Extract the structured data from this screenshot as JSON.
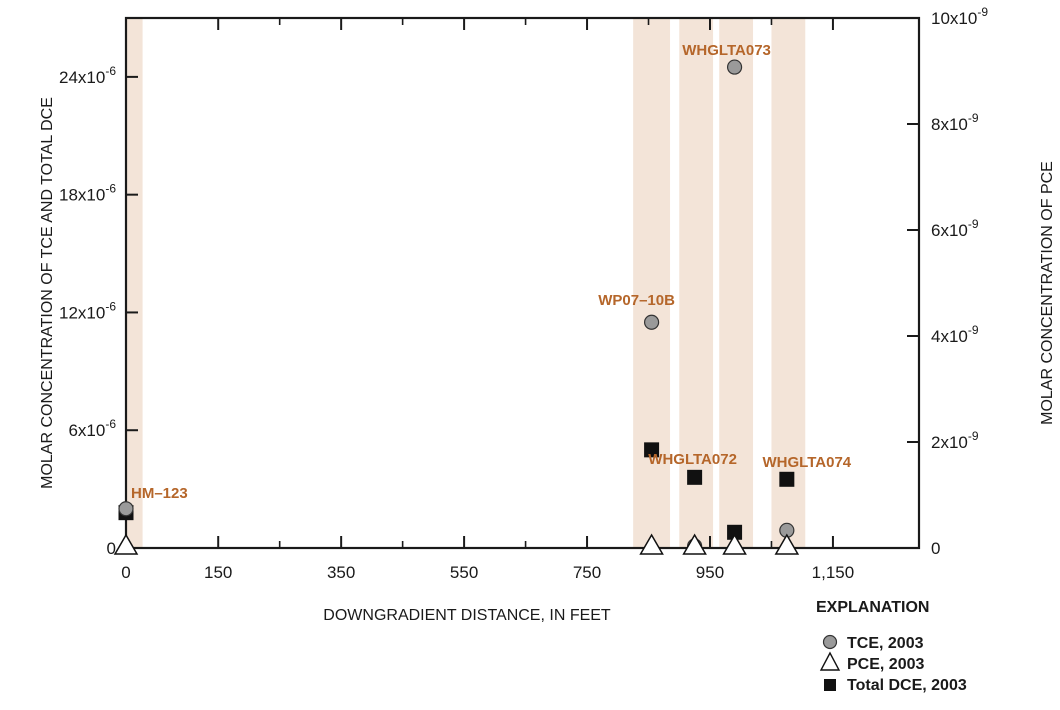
{
  "chart_data": {
    "type": "scatter",
    "xlabel": "DOWNGRADIENT DISTANCE, IN FEET",
    "ylabel": "MOLAR CONCENTRATION OF TCE AND TOTAL DCE",
    "y2label": "MOLAR CONCENTRATION OF PCE",
    "xlim": [
      0,
      1290
    ],
    "ylim": [
      0,
      2.7e-05
    ],
    "y2lim": [
      0,
      1e-08
    ],
    "x_tick_values": [
      0,
      150,
      350,
      550,
      750,
      950,
      1150
    ],
    "x_tick_labels": [
      "0",
      "150",
      "350",
      "550",
      "750",
      "950",
      "1,150"
    ],
    "x_minor_ticks": [
      250,
      450,
      650,
      850,
      1050
    ],
    "y_ticks": [
      {
        "value": 0,
        "base": "0",
        "exp": ""
      },
      {
        "value": 6e-06,
        "base": "6x10",
        "exp": "-6"
      },
      {
        "value": 1.2e-05,
        "base": "12x10",
        "exp": "-6"
      },
      {
        "value": 1.8e-05,
        "base": "18x10",
        "exp": "-6"
      },
      {
        "value": 2.4e-05,
        "base": "24x10",
        "exp": "-6"
      }
    ],
    "y2_ticks": [
      {
        "value": 0,
        "base": "0",
        "exp": ""
      },
      {
        "value": 2e-09,
        "base": "2x10",
        "exp": "-9"
      },
      {
        "value": 4e-09,
        "base": "4x10",
        "exp": "-9"
      },
      {
        "value": 6e-09,
        "base": "6x10",
        "exp": "-9"
      },
      {
        "value": 8e-09,
        "base": "8x10",
        "exp": "-9"
      },
      {
        "value": 1e-08,
        "base": "10x10",
        "exp": "-9"
      }
    ],
    "wells": [
      {
        "name": "HM–123",
        "x": 0,
        "band": [
          0,
          27
        ]
      },
      {
        "name": "WP07–10B",
        "x": 855,
        "band": [
          825,
          885
        ]
      },
      {
        "name": "WHGLTA072",
        "x": 925,
        "band": [
          900,
          955
        ]
      },
      {
        "name": "WHGLTA073",
        "x": 990,
        "band": [
          965,
          1020
        ]
      },
      {
        "name": "WHGLTA074",
        "x": 1075,
        "band": [
          1050,
          1105
        ]
      }
    ],
    "series": [
      {
        "name": "TCE, 2003",
        "axis": "left",
        "marker": "circle",
        "points": [
          [
            0,
            2e-06
          ],
          [
            855,
            1.15e-05
          ],
          [
            925,
            1e-07
          ],
          [
            990,
            2.45e-05
          ],
          [
            1075,
            9e-07
          ]
        ]
      },
      {
        "name": "PCE, 2003",
        "axis": "right",
        "marker": "triangle",
        "points": [
          [
            0,
            0
          ],
          [
            855,
            0
          ],
          [
            925,
            0
          ],
          [
            990,
            0
          ],
          [
            1075,
            0
          ]
        ]
      },
      {
        "name": "Total DCE, 2003",
        "axis": "left",
        "marker": "square",
        "points": [
          [
            0,
            1.8e-06
          ],
          [
            855,
            5e-06
          ],
          [
            925,
            3.6e-06
          ],
          [
            990,
            8e-07
          ],
          [
            1075,
            3.5e-06
          ]
        ]
      }
    ],
    "legend": {
      "title": "EXPLANATION",
      "placement": "bottom-right"
    }
  },
  "colors": {
    "band": "#f3e4d8",
    "label": "#b5662a",
    "circle_fill": "#9a9a9a",
    "axis": "#1a1a1a"
  }
}
